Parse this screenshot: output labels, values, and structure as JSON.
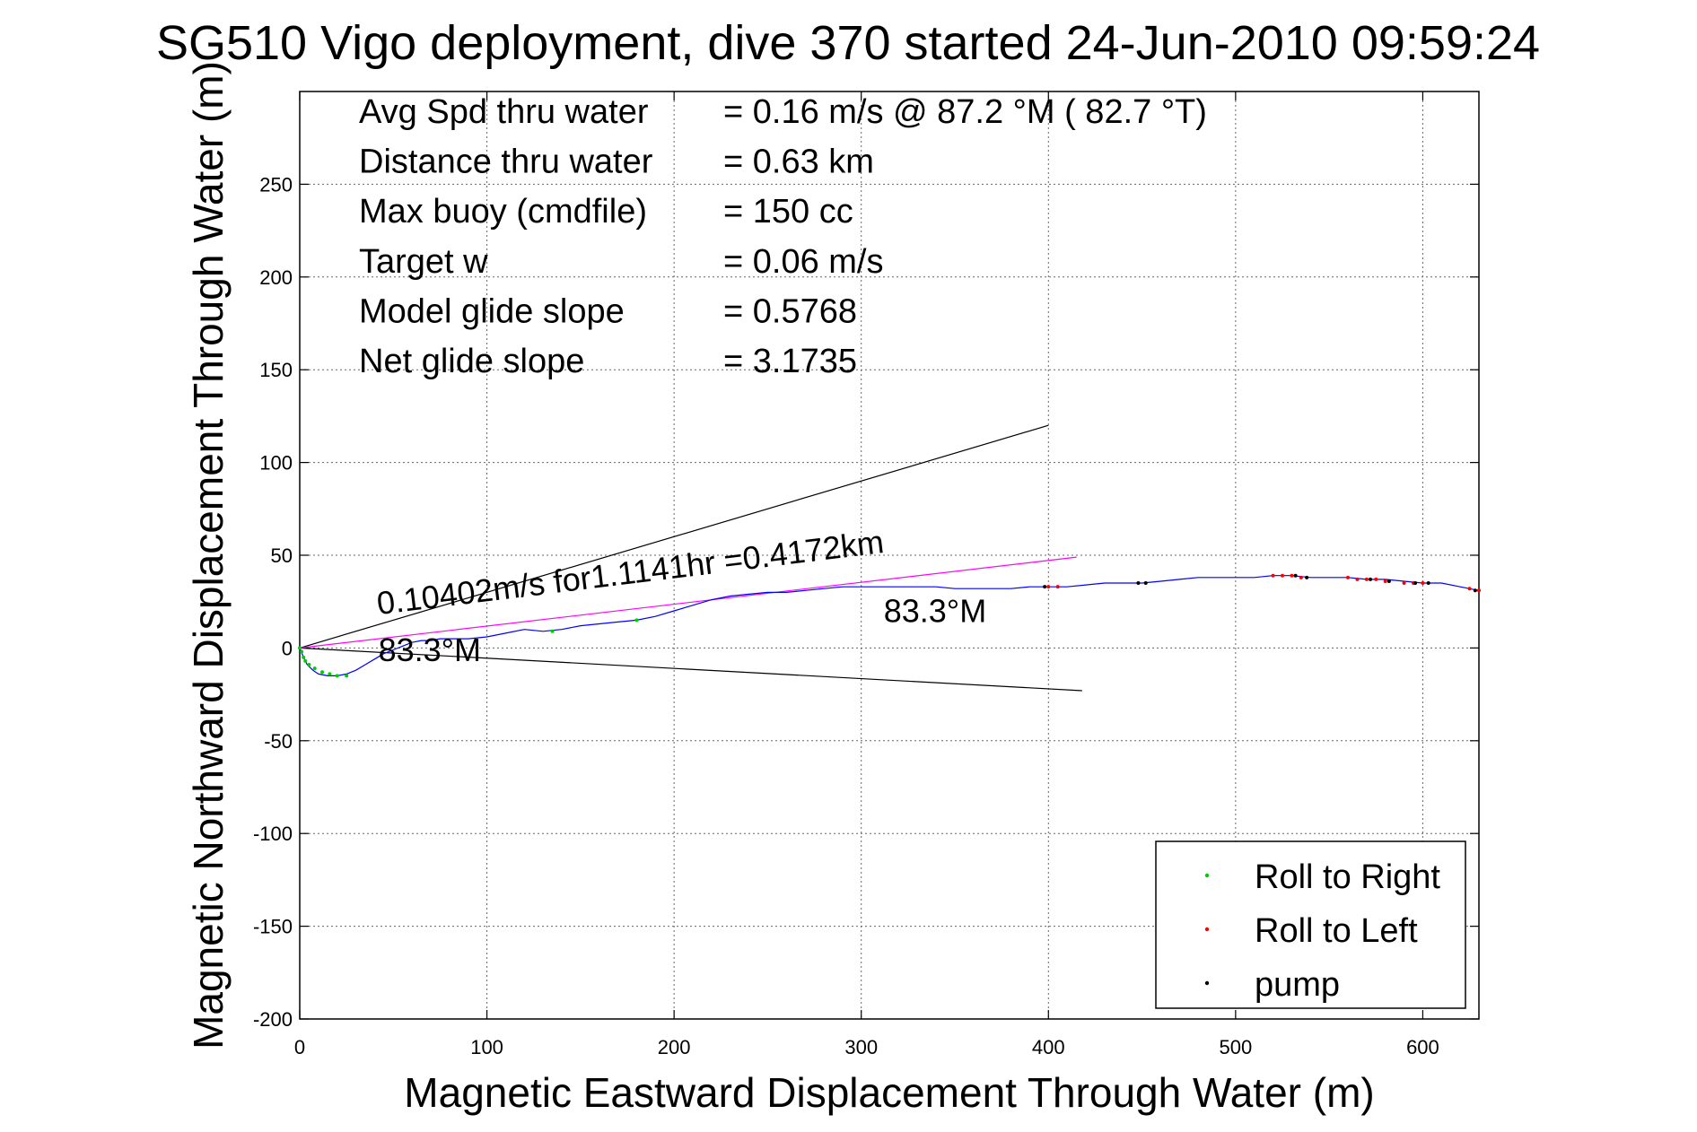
{
  "chart_data": {
    "type": "line",
    "title": "SG510 Vigo deployment, dive 370 started 24-Jun-2010 09:59:24",
    "xlabel": "Magnetic Eastward Displacement Through Water (m)",
    "ylabel": "Magnetic Northward Displacement Through Water (m)",
    "xlim": [
      0,
      630
    ],
    "ylim": [
      -200,
      300
    ],
    "xticks": [
      0,
      100,
      200,
      300,
      400,
      500,
      600
    ],
    "yticks": [
      -200,
      -150,
      -100,
      -50,
      0,
      50,
      100,
      150,
      200,
      250
    ],
    "grid": true,
    "legend_position": "bottom-right",
    "info_lines": [
      {
        "label": "Avg Spd thru water",
        "value": "=  0.16 m/s @  87.2 °M ( 82.7 °T)"
      },
      {
        "label": "Distance thru water",
        "value": "=  0.63 km"
      },
      {
        "label": "Max buoy (cmdfile)",
        "value": "= 150 cc"
      },
      {
        "label": "Target w",
        "value": "= 0.06 m/s"
      },
      {
        "label": "Model glide slope",
        "value": "= 0.5768"
      },
      {
        "label": "Net glide slope",
        "value": "= 3.1735"
      }
    ],
    "annotations": [
      {
        "text": "0.10402m/s for1.1141hr =0.4172km",
        "x": 42,
        "y": 18,
        "rotation_deg": -7
      },
      {
        "text": "83.3°M",
        "x": 312,
        "y": 14
      },
      {
        "text": "83.3°M",
        "x": 42,
        "y": -7
      }
    ],
    "legend": [
      {
        "label": "Roll to Right",
        "color": "#00cc00"
      },
      {
        "label": "Roll to Left",
        "color": "#ff0000"
      },
      {
        "label": "pump",
        "color": "#000000"
      }
    ],
    "track_color": "#0000ff",
    "current_color": "#ff00ff",
    "series": [
      {
        "role": "track",
        "x": [
          0,
          2,
          4,
          7,
          10,
          15,
          20,
          25,
          30,
          35,
          40,
          45,
          50,
          55,
          60,
          65,
          70,
          75,
          80,
          90,
          100,
          110,
          120,
          130,
          140,
          150,
          160,
          170,
          180,
          190,
          200,
          210,
          220,
          230,
          240,
          250,
          260,
          270,
          280,
          290,
          300,
          310,
          320,
          330,
          340,
          350,
          360,
          370,
          380,
          390,
          400,
          410,
          420,
          430,
          440,
          450,
          460,
          470,
          480,
          490,
          500,
          510,
          520,
          530,
          540,
          550,
          560,
          570,
          580,
          590,
          600,
          610,
          620,
          630
        ],
        "y": [
          0,
          -5,
          -9,
          -12,
          -14,
          -15,
          -15,
          -14,
          -12,
          -9,
          -6,
          -3,
          -1,
          1,
          3,
          4,
          4,
          5,
          5,
          5,
          6,
          8,
          10,
          9,
          10,
          12,
          13,
          14,
          15,
          17,
          20,
          23,
          26,
          28,
          29,
          30,
          30,
          31,
          32,
          33,
          33,
          33,
          33,
          33,
          33,
          32,
          32,
          32,
          32,
          33,
          33,
          33,
          34,
          35,
          35,
          35,
          36,
          37,
          38,
          38,
          38,
          38,
          39,
          39,
          38,
          38,
          38,
          37,
          37,
          36,
          35,
          35,
          33,
          31
        ]
      },
      {
        "role": "current",
        "x": [
          0,
          415
        ],
        "y": [
          0,
          49
        ]
      },
      {
        "role": "envelope",
        "x": [
          0,
          400
        ],
        "y": [
          0,
          120
        ]
      },
      {
        "role": "envelope",
        "x": [
          0,
          418
        ],
        "y": [
          0,
          -23
        ]
      },
      {
        "role": "marker",
        "name": "Roll to Right",
        "x": [
          0,
          1,
          2,
          3,
          5,
          8,
          12,
          16,
          20,
          25,
          135,
          180
        ],
        "y": [
          0,
          -2,
          -5,
          -7,
          -9,
          -11,
          -13,
          -14,
          -15,
          -15,
          9,
          15
        ]
      },
      {
        "role": "marker",
        "name": "Roll to Left",
        "x": [
          400,
          405,
          520,
          525,
          530,
          535,
          560,
          565,
          570,
          575,
          580,
          590,
          595,
          600,
          625,
          630
        ],
        "y": [
          33,
          33,
          39,
          39,
          39,
          38,
          38,
          37,
          37,
          37,
          36,
          35,
          35,
          35,
          32,
          31
        ]
      },
      {
        "role": "marker",
        "name": "pump",
        "x": [
          398,
          448,
          452,
          532,
          538,
          572,
          582,
          596,
          603,
          628
        ],
        "y": [
          33,
          35,
          35,
          39,
          38,
          37,
          36,
          35,
          35,
          31
        ]
      }
    ]
  }
}
